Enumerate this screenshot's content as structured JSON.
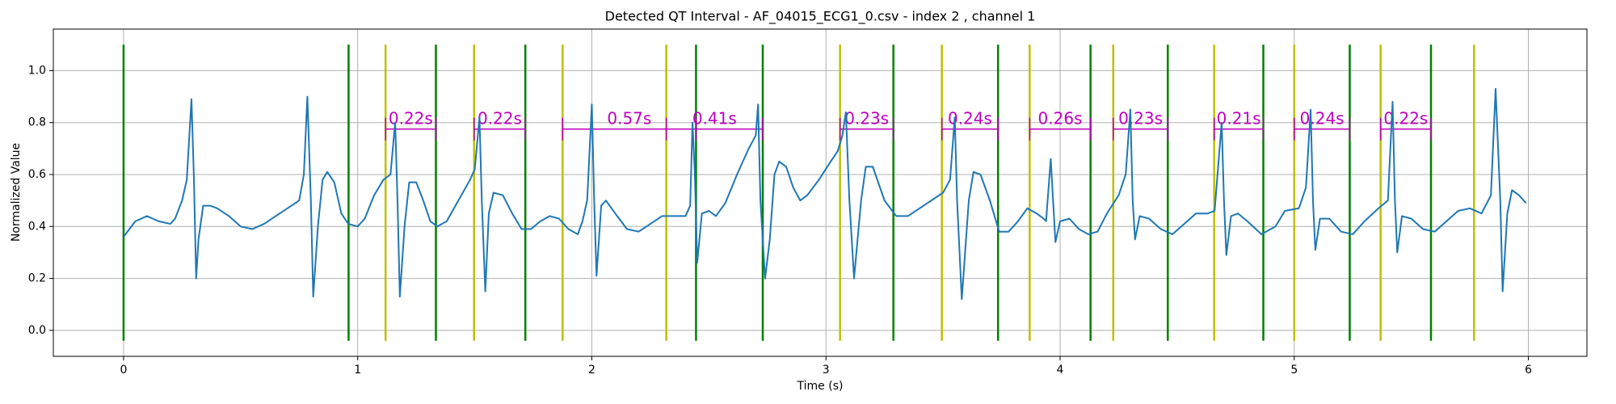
{
  "chart_data": {
    "type": "line",
    "title": "Detected QT Interval - AF_04015_ECG1_0.csv - index 2 , channel 1",
    "x_label": "Time (s)",
    "y_label": "Normalized Value",
    "xlim": [
      -0.3,
      6.25
    ],
    "ylim": [
      -0.1,
      1.16
    ],
    "xticks": [
      0,
      1,
      2,
      3,
      4,
      5,
      6
    ],
    "yticks": [
      {
        "value": 0,
        "label": "0.0"
      },
      {
        "value": 0.2,
        "label": "0.2"
      },
      {
        "value": 0.4,
        "label": "0.4"
      },
      {
        "value": 0.6,
        "label": "0.6"
      },
      {
        "value": 0.8,
        "label": "0.8"
      },
      {
        "value": 1.0,
        "label": "1.0"
      }
    ],
    "grid": true,
    "x": [
      0,
      0.05,
      0.1,
      0.15,
      0.2,
      0.22,
      0.25,
      0.27,
      0.29,
      0.3,
      0.31,
      0.32,
      0.34,
      0.37,
      0.4,
      0.45,
      0.5,
      0.55,
      0.6,
      0.65,
      0.7,
      0.75,
      0.77,
      0.785,
      0.8,
      0.81,
      0.83,
      0.85,
      0.87,
      0.9,
      0.93,
      0.96,
      1.0,
      1.03,
      1.07,
      1.11,
      1.14,
      1.16,
      1.17,
      1.18,
      1.2,
      1.22,
      1.25,
      1.28,
      1.31,
      1.34,
      1.38,
      1.43,
      1.48,
      1.5,
      1.52,
      1.53,
      1.545,
      1.56,
      1.58,
      1.62,
      1.66,
      1.7,
      1.74,
      1.78,
      1.82,
      1.86,
      1.9,
      1.94,
      1.96,
      1.98,
      2.0,
      2.01,
      2.02,
      2.04,
      2.06,
      2.1,
      2.15,
      2.2,
      2.25,
      2.3,
      2.35,
      2.4,
      2.42,
      2.43,
      2.44,
      2.45,
      2.47,
      2.5,
      2.53,
      2.57,
      2.62,
      2.67,
      2.7,
      2.71,
      2.72,
      2.74,
      2.76,
      2.78,
      2.8,
      2.83,
      2.86,
      2.89,
      2.92,
      2.97,
      3.02,
      3.05,
      3.07,
      3.085,
      3.1,
      3.12,
      3.15,
      3.17,
      3.2,
      3.25,
      3.3,
      3.35,
      3.4,
      3.45,
      3.5,
      3.53,
      3.55,
      3.56,
      3.58,
      3.61,
      3.63,
      3.66,
      3.7,
      3.74,
      3.78,
      3.82,
      3.86,
      3.9,
      3.93,
      3.94,
      3.96,
      3.97,
      3.98,
      4.0,
      4.04,
      4.08,
      4.12,
      4.16,
      4.2,
      4.25,
      4.28,
      4.3,
      4.31,
      4.32,
      4.34,
      4.38,
      4.43,
      4.48,
      4.53,
      4.58,
      4.63,
      4.66,
      4.69,
      4.7,
      4.71,
      4.73,
      4.76,
      4.8,
      4.86,
      4.92,
      4.96,
      5.02,
      5.05,
      5.07,
      5.08,
      5.09,
      5.11,
      5.15,
      5.2,
      5.25,
      5.3,
      5.36,
      5.4,
      5.42,
      5.43,
      5.44,
      5.46,
      5.5,
      5.55,
      5.6,
      5.65,
      5.7,
      5.75,
      5.8,
      5.84,
      5.86,
      5.88,
      5.89,
      5.91,
      5.93,
      5.96,
      5.99
    ],
    "series": [
      {
        "color": "#1f77b4",
        "values": [
          0.36,
          0.42,
          0.44,
          0.42,
          0.41,
          0.43,
          0.5,
          0.58,
          0.89,
          0.6,
          0.2,
          0.35,
          0.48,
          0.48,
          0.47,
          0.44,
          0.4,
          0.39,
          0.41,
          0.44,
          0.47,
          0.5,
          0.6,
          0.9,
          0.5,
          0.13,
          0.4,
          0.58,
          0.61,
          0.57,
          0.45,
          0.41,
          0.4,
          0.43,
          0.52,
          0.58,
          0.6,
          0.8,
          0.5,
          0.13,
          0.4,
          0.57,
          0.57,
          0.5,
          0.42,
          0.4,
          0.42,
          0.5,
          0.58,
          0.62,
          0.82,
          0.5,
          0.15,
          0.45,
          0.53,
          0.52,
          0.45,
          0.39,
          0.39,
          0.42,
          0.44,
          0.43,
          0.39,
          0.37,
          0.42,
          0.5,
          0.87,
          0.5,
          0.21,
          0.48,
          0.5,
          0.45,
          0.39,
          0.38,
          0.41,
          0.44,
          0.44,
          0.44,
          0.48,
          0.8,
          0.6,
          0.26,
          0.45,
          0.46,
          0.44,
          0.49,
          0.6,
          0.7,
          0.75,
          0.87,
          0.5,
          0.2,
          0.35,
          0.6,
          0.65,
          0.63,
          0.55,
          0.5,
          0.52,
          0.58,
          0.65,
          0.69,
          0.75,
          0.84,
          0.5,
          0.2,
          0.5,
          0.63,
          0.63,
          0.5,
          0.44,
          0.44,
          0.47,
          0.5,
          0.53,
          0.58,
          0.82,
          0.5,
          0.12,
          0.5,
          0.61,
          0.6,
          0.5,
          0.38,
          0.38,
          0.42,
          0.47,
          0.45,
          0.43,
          0.42,
          0.66,
          0.5,
          0.34,
          0.42,
          0.43,
          0.39,
          0.37,
          0.38,
          0.45,
          0.52,
          0.6,
          0.85,
          0.5,
          0.35,
          0.44,
          0.43,
          0.39,
          0.37,
          0.41,
          0.45,
          0.45,
          0.46,
          0.8,
          0.5,
          0.29,
          0.44,
          0.45,
          0.42,
          0.37,
          0.4,
          0.46,
          0.47,
          0.55,
          0.85,
          0.5,
          0.31,
          0.43,
          0.43,
          0.38,
          0.37,
          0.42,
          0.47,
          0.5,
          0.88,
          0.5,
          0.3,
          0.44,
          0.43,
          0.39,
          0.38,
          0.42,
          0.46,
          0.47,
          0.45,
          0.52,
          0.93,
          0.5,
          0.15,
          0.45,
          0.54,
          0.52,
          0.49
        ]
      }
    ],
    "vlines": [
      {
        "color": "#008000",
        "x": [
          0,
          0.961,
          1.334,
          1.716,
          2.445,
          2.73,
          3.288,
          3.735,
          4.13,
          4.46,
          4.868,
          5.237,
          5.584
        ]
      },
      {
        "color": "#bfbf00",
        "x": [
          1.119,
          1.497,
          1.875,
          2.318,
          3.06,
          3.495,
          3.87,
          4.227,
          4.658,
          5.0,
          5.369,
          5.768
        ]
      }
    ],
    "vline_ylim": [
      -0.04,
      1.1
    ],
    "interval_color": "#bf00bf",
    "intervals": [
      {
        "start": 1.119,
        "end": 1.334,
        "y": 0.775,
        "label": "0.22s"
      },
      {
        "start": 1.497,
        "end": 1.716,
        "y": 0.775,
        "label": "0.22s"
      },
      {
        "start": 1.875,
        "end": 2.445,
        "y": 0.775,
        "label": "0.57s"
      },
      {
        "start": 2.318,
        "end": 2.73,
        "y": 0.775,
        "label": "0.41s"
      },
      {
        "start": 3.06,
        "end": 3.288,
        "y": 0.775,
        "label": "0.23s"
      },
      {
        "start": 3.495,
        "end": 3.735,
        "y": 0.775,
        "label": "0.24s"
      },
      {
        "start": 3.87,
        "end": 4.13,
        "y": 0.775,
        "label": "0.26s"
      },
      {
        "start": 4.227,
        "end": 4.46,
        "y": 0.775,
        "label": "0.23s"
      },
      {
        "start": 4.658,
        "end": 4.868,
        "y": 0.775,
        "label": "0.21s"
      },
      {
        "start": 5.0,
        "end": 5.237,
        "y": 0.775,
        "label": "0.24s"
      },
      {
        "start": 5.369,
        "end": 5.584,
        "y": 0.775,
        "label": "0.22s"
      }
    ]
  }
}
